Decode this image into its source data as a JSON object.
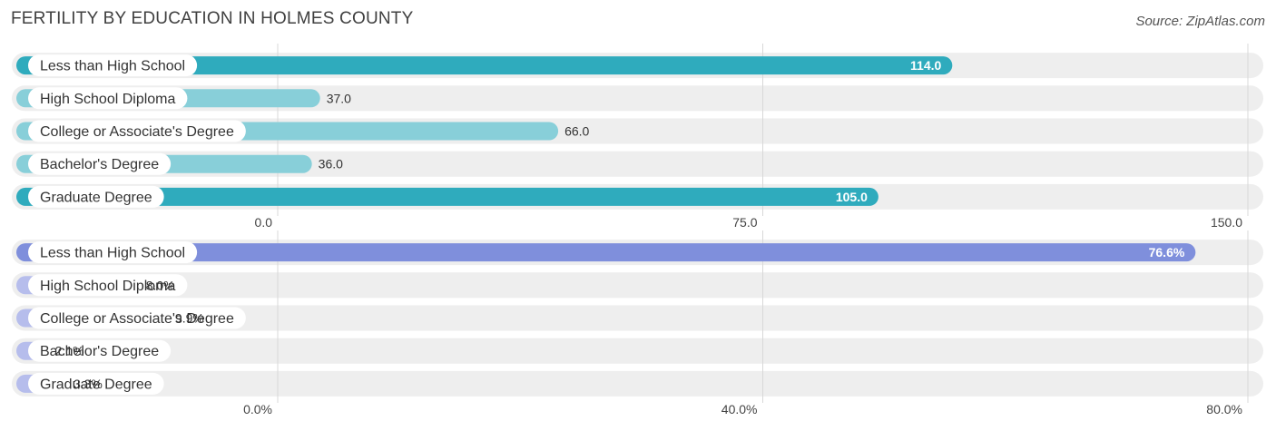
{
  "header": {
    "title": "Fertility by Education in Holmes County",
    "source": "Source: ZipAtlas.com"
  },
  "colors": {
    "series1_strong": "#2fabbd",
    "series1_light": "#88cfd9",
    "series2_strong": "#7f8fdc",
    "series2_light": "#b6bdec"
  },
  "chart_data": [
    {
      "type": "bar",
      "orientation": "horizontal",
      "categories": [
        "Less than High School",
        "High School Diploma",
        "College or Associate's Degree",
        "Bachelor's Degree",
        "Graduate Degree"
      ],
      "values": [
        114.0,
        37.0,
        66.0,
        36.0,
        105.0
      ],
      "value_labels": [
        "114.0",
        "37.0",
        "66.0",
        "36.0",
        "105.0"
      ],
      "xlim": [
        0,
        150
      ],
      "ticks": [
        0,
        75,
        150
      ],
      "tick_labels": [
        "0.0",
        "75.0",
        "150.0"
      ],
      "grid": true
    },
    {
      "type": "bar",
      "orientation": "horizontal",
      "categories": [
        "Less than High School",
        "High School Diploma",
        "College or Associate's Degree",
        "Bachelor's Degree",
        "Graduate Degree"
      ],
      "values": [
        76.6,
        8.0,
        9.9,
        2.1,
        3.3
      ],
      "value_labels": [
        "76.6%",
        "8.0%",
        "9.9%",
        "2.1%",
        "3.3%"
      ],
      "xlim": [
        0,
        80
      ],
      "ticks": [
        0,
        40,
        80
      ],
      "tick_labels": [
        "0.0%",
        "40.0%",
        "80.0%"
      ],
      "grid": true
    }
  ]
}
